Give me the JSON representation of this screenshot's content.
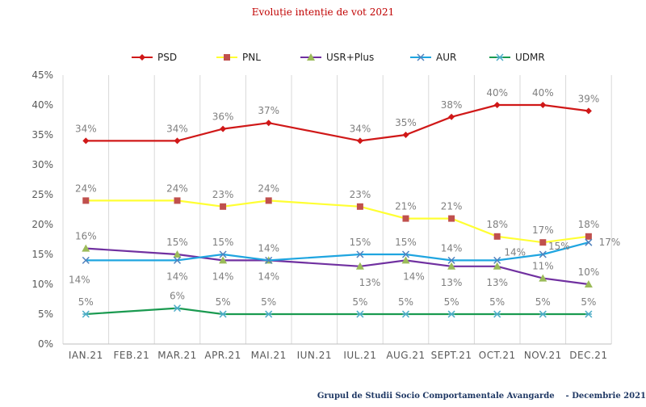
{
  "chart_data": {
    "type": "line",
    "title": "Evoluție intenție de vot 2021",
    "categories": [
      "IAN.21",
      "FEB.21",
      "MAR.21",
      "APR.21",
      "MAI.21",
      "IUN.21",
      "IUL.21",
      "AUG.21",
      "SEPT.21",
      "OCT.21",
      "NOV.21",
      "DEC.21"
    ],
    "ylim": [
      0,
      45
    ],
    "yticks": [
      "0%",
      "5%",
      "10%",
      "15%",
      "20%",
      "25%",
      "30%",
      "35%",
      "40%",
      "45%"
    ],
    "grid": "vertical",
    "legend": "top",
    "series": [
      {
        "name": "PSD",
        "color": "#d01818",
        "marker": "diamond",
        "values": [
          34,
          null,
          34,
          36,
          37,
          null,
          34,
          35,
          38,
          40,
          40,
          39
        ]
      },
      {
        "name": "PNL",
        "color": "#ffff33",
        "marker_color": "#c0504d",
        "marker": "square",
        "values": [
          24,
          null,
          24,
          23,
          24,
          null,
          23,
          21,
          21,
          18,
          17,
          18
        ]
      },
      {
        "name": "USR+Plus",
        "color": "#7030a0",
        "marker_color": "#9bbb59",
        "marker": "triangle",
        "values": [
          16,
          null,
          15,
          14,
          14,
          null,
          13,
          14,
          13,
          13,
          11,
          10
        ]
      },
      {
        "name": "AUR",
        "color": "#1fa5e0",
        "marker_color": "#4f81bd",
        "marker": "x",
        "values": [
          14,
          null,
          14,
          15,
          14,
          null,
          15,
          15,
          14,
          14,
          15,
          17
        ]
      },
      {
        "name": "UDMR",
        "color": "#1a9a50",
        "marker_color": "#4bacc6",
        "marker": "star",
        "values": [
          5,
          null,
          6,
          5,
          5,
          null,
          5,
          5,
          5,
          5,
          5,
          5
        ]
      }
    ]
  },
  "footer": "Grupul de Studii Socio Comportamentale Avangarde    - Decembrie 2021"
}
